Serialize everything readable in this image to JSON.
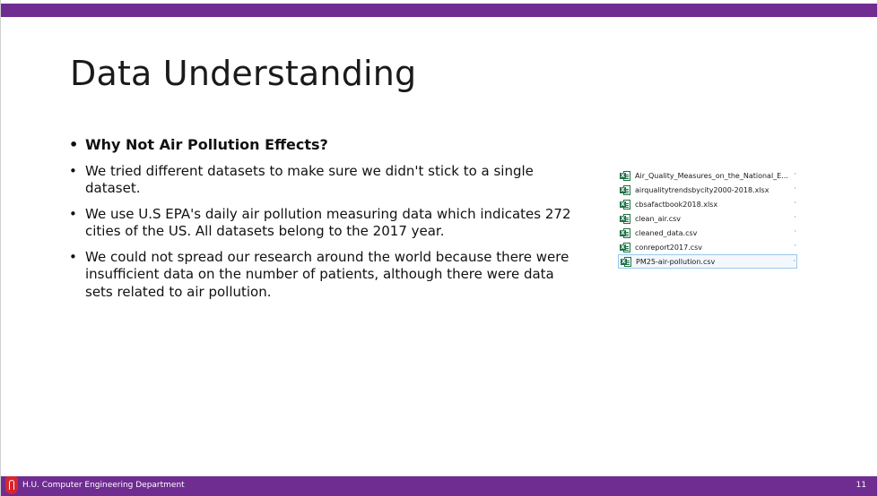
{
  "slide": {
    "title": "Data Understanding",
    "bullets": [
      {
        "text": "Why Not Air Pollution Effects?",
        "bold": true
      },
      {
        "text": "We tried different datasets to make sure we didn't stick to a single dataset.",
        "bold": false
      },
      {
        "text": "We use U.S EPA's daily air pollution measuring data which indicates 272 cities of the US. All datasets belong to the 2017 year.",
        "bold": false
      },
      {
        "text": "We could not spread our research around the world because there were insufficient data on the number of patients, although there were data sets related to air pollution.",
        "bold": false
      }
    ],
    "bullet_glyph": "•"
  },
  "files": [
    {
      "name": "Air_Quality_Measures_on_the_National_E...",
      "icon": "excel-file-icon",
      "selected": false
    },
    {
      "name": "airqualitytrendsbycity2000-2018.xlsx",
      "icon": "excel-file-icon",
      "selected": false
    },
    {
      "name": "cbsafactbook2018.xlsx",
      "icon": "excel-file-icon",
      "selected": false
    },
    {
      "name": "clean_air.csv",
      "icon": "excel-file-icon",
      "selected": false
    },
    {
      "name": "cleaned_data.csv",
      "icon": "excel-file-icon",
      "selected": false
    },
    {
      "name": "conreport2017.csv",
      "icon": "excel-file-icon",
      "selected": false
    },
    {
      "name": "PM25-air-pollution.csv",
      "icon": "excel-file-icon",
      "selected": true
    }
  ],
  "file_tail_glyph": "·",
  "excel_badge": "X",
  "footer": {
    "department": "H.U. Computer Engineering Department",
    "page_number": "11"
  },
  "colors": {
    "brand_purple": "#6f2c91",
    "logo_red": "#d7262e",
    "excel_green": "#1e7145"
  }
}
